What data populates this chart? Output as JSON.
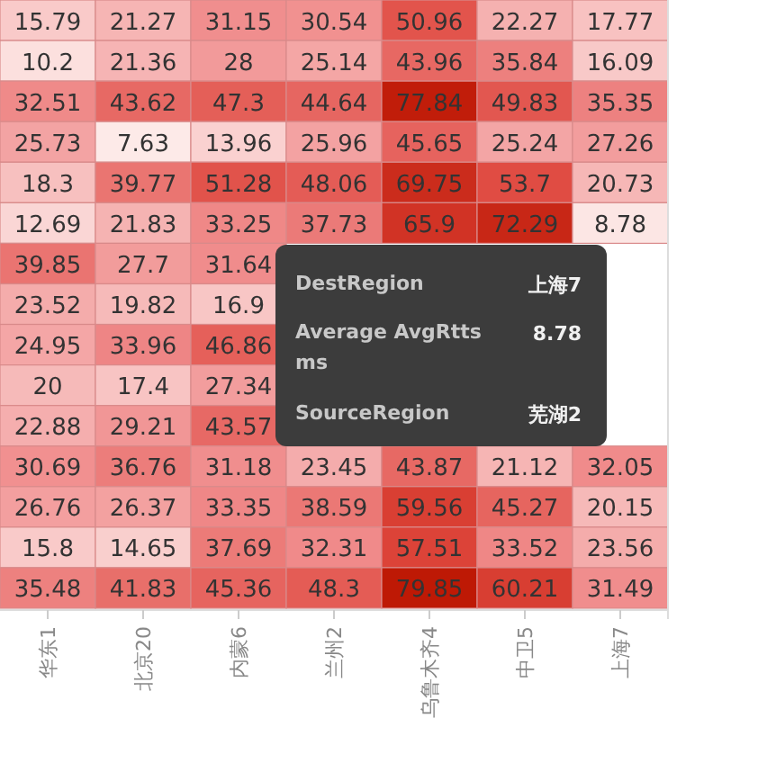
{
  "chart_data": {
    "type": "heatmap",
    "categories": [
      "华东1",
      "北京20",
      "内蒙6",
      "兰州2",
      "乌鲁木齐4",
      "中卫5",
      "上海7"
    ],
    "y_categories": [
      null,
      null,
      null,
      null,
      null,
      null,
      null,
      null,
      null,
      null,
      null,
      null,
      null,
      null,
      null
    ],
    "cells": [
      [
        15.79,
        21.27,
        31.15,
        30.54,
        50.96,
        22.27,
        17.77
      ],
      [
        10.2,
        21.36,
        28,
        25.14,
        43.96,
        35.84,
        16.09
      ],
      [
        32.51,
        43.62,
        47.3,
        44.64,
        77.84,
        49.83,
        35.35
      ],
      [
        25.73,
        7.63,
        13.96,
        25.96,
        45.65,
        25.24,
        27.26
      ],
      [
        18.3,
        39.77,
        51.28,
        48.06,
        69.75,
        53.7,
        20.73
      ],
      [
        12.69,
        21.83,
        33.25,
        37.73,
        65.9,
        72.29,
        8.78
      ],
      [
        39.85,
        27.7,
        31.64,
        null,
        null,
        null,
        null
      ],
      [
        23.52,
        19.82,
        16.9,
        null,
        null,
        null,
        null
      ],
      [
        24.95,
        33.96,
        46.86,
        null,
        null,
        null,
        null
      ],
      [
        20,
        17.4,
        27.34,
        null,
        null,
        null,
        null
      ],
      [
        22.88,
        29.21,
        43.57,
        null,
        null,
        null,
        null
      ],
      [
        30.69,
        36.76,
        31.18,
        23.45,
        43.87,
        21.12,
        32.05
      ],
      [
        26.76,
        26.37,
        33.35,
        38.59,
        59.56,
        45.27,
        20.15
      ],
      [
        15.8,
        14.65,
        37.69,
        32.31,
        57.51,
        33.52,
        23.56
      ],
      [
        35.48,
        41.83,
        45.36,
        48.3,
        79.85,
        60.21,
        31.49
      ]
    ],
    "data_labels": true,
    "annotations": [
      "DestRegion",
      "上海7",
      "Average AvgRtts ms",
      "8.78",
      "SourceRegion",
      "芜湖2"
    ]
  }
}
